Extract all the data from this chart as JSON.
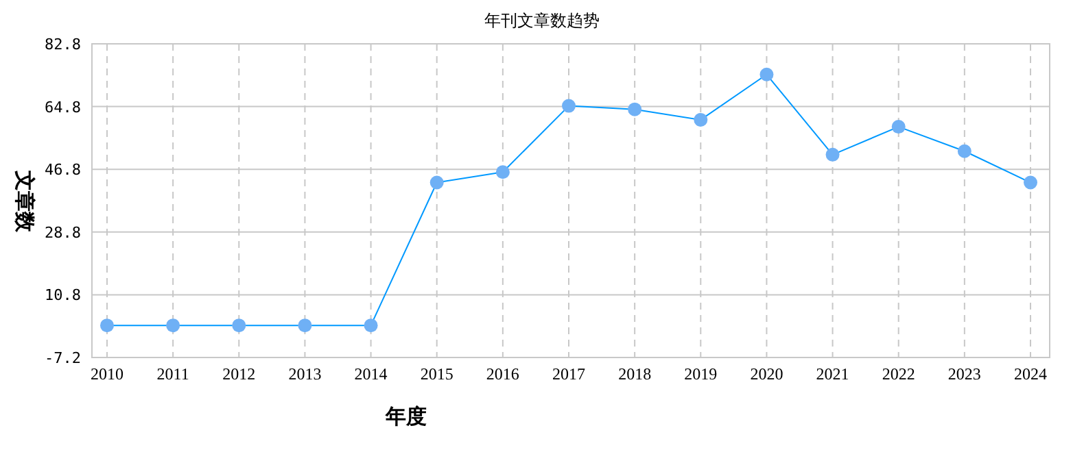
{
  "chart_data": {
    "type": "line",
    "title": "年刊文章数趋势",
    "xlabel": "年度",
    "ylabel": "文章数",
    "categories": [
      "2010",
      "2011",
      "2012",
      "2013",
      "2014",
      "2015",
      "2016",
      "2017",
      "2018",
      "2019",
      "2020",
      "2021",
      "2022",
      "2023",
      "2024"
    ],
    "series": [
      {
        "color": "#0099ff",
        "values": [
          2,
          2,
          2,
          2,
          2,
          43,
          46,
          65,
          64,
          61,
          74,
          51,
          59,
          52,
          43
        ]
      }
    ],
    "ylim": [
      -7.2,
      82.8
    ],
    "yticks": [
      -7.2,
      10.8,
      28.8,
      46.8,
      64.8,
      82.8
    ],
    "grid": true,
    "marker": "circle",
    "line_style": "solid"
  }
}
